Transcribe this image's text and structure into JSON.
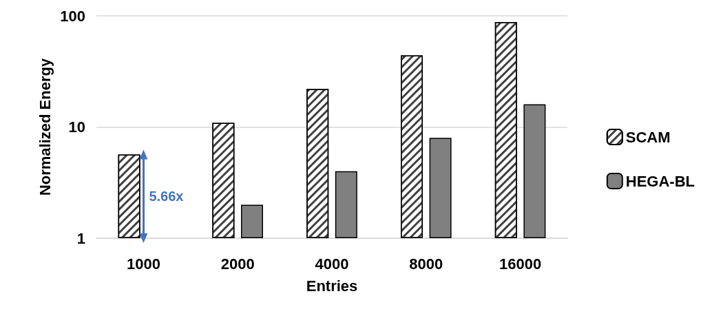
{
  "chart_data": {
    "type": "bar",
    "xlabel": "Entries",
    "ylabel": "Normalized Energy",
    "categories": [
      "1000",
      "2000",
      "4000",
      "8000",
      "16000"
    ],
    "series": [
      {
        "name": "SCAM",
        "color": "#ffffff",
        "values": [
          5.66,
          10.9,
          22,
          44,
          88
        ]
      },
      {
        "name": "HEGA-BL",
        "color": "#808080",
        "values": [
          null,
          2,
          4,
          8,
          16
        ]
      }
    ],
    "log": "y",
    "ylim": [
      1,
      100
    ],
    "yticks": [
      1,
      10,
      100
    ],
    "grid": "y",
    "legend": "right",
    "annotations": [
      {
        "text": "5.66x",
        "x": "1000",
        "y": 5.66
      }
    ]
  }
}
